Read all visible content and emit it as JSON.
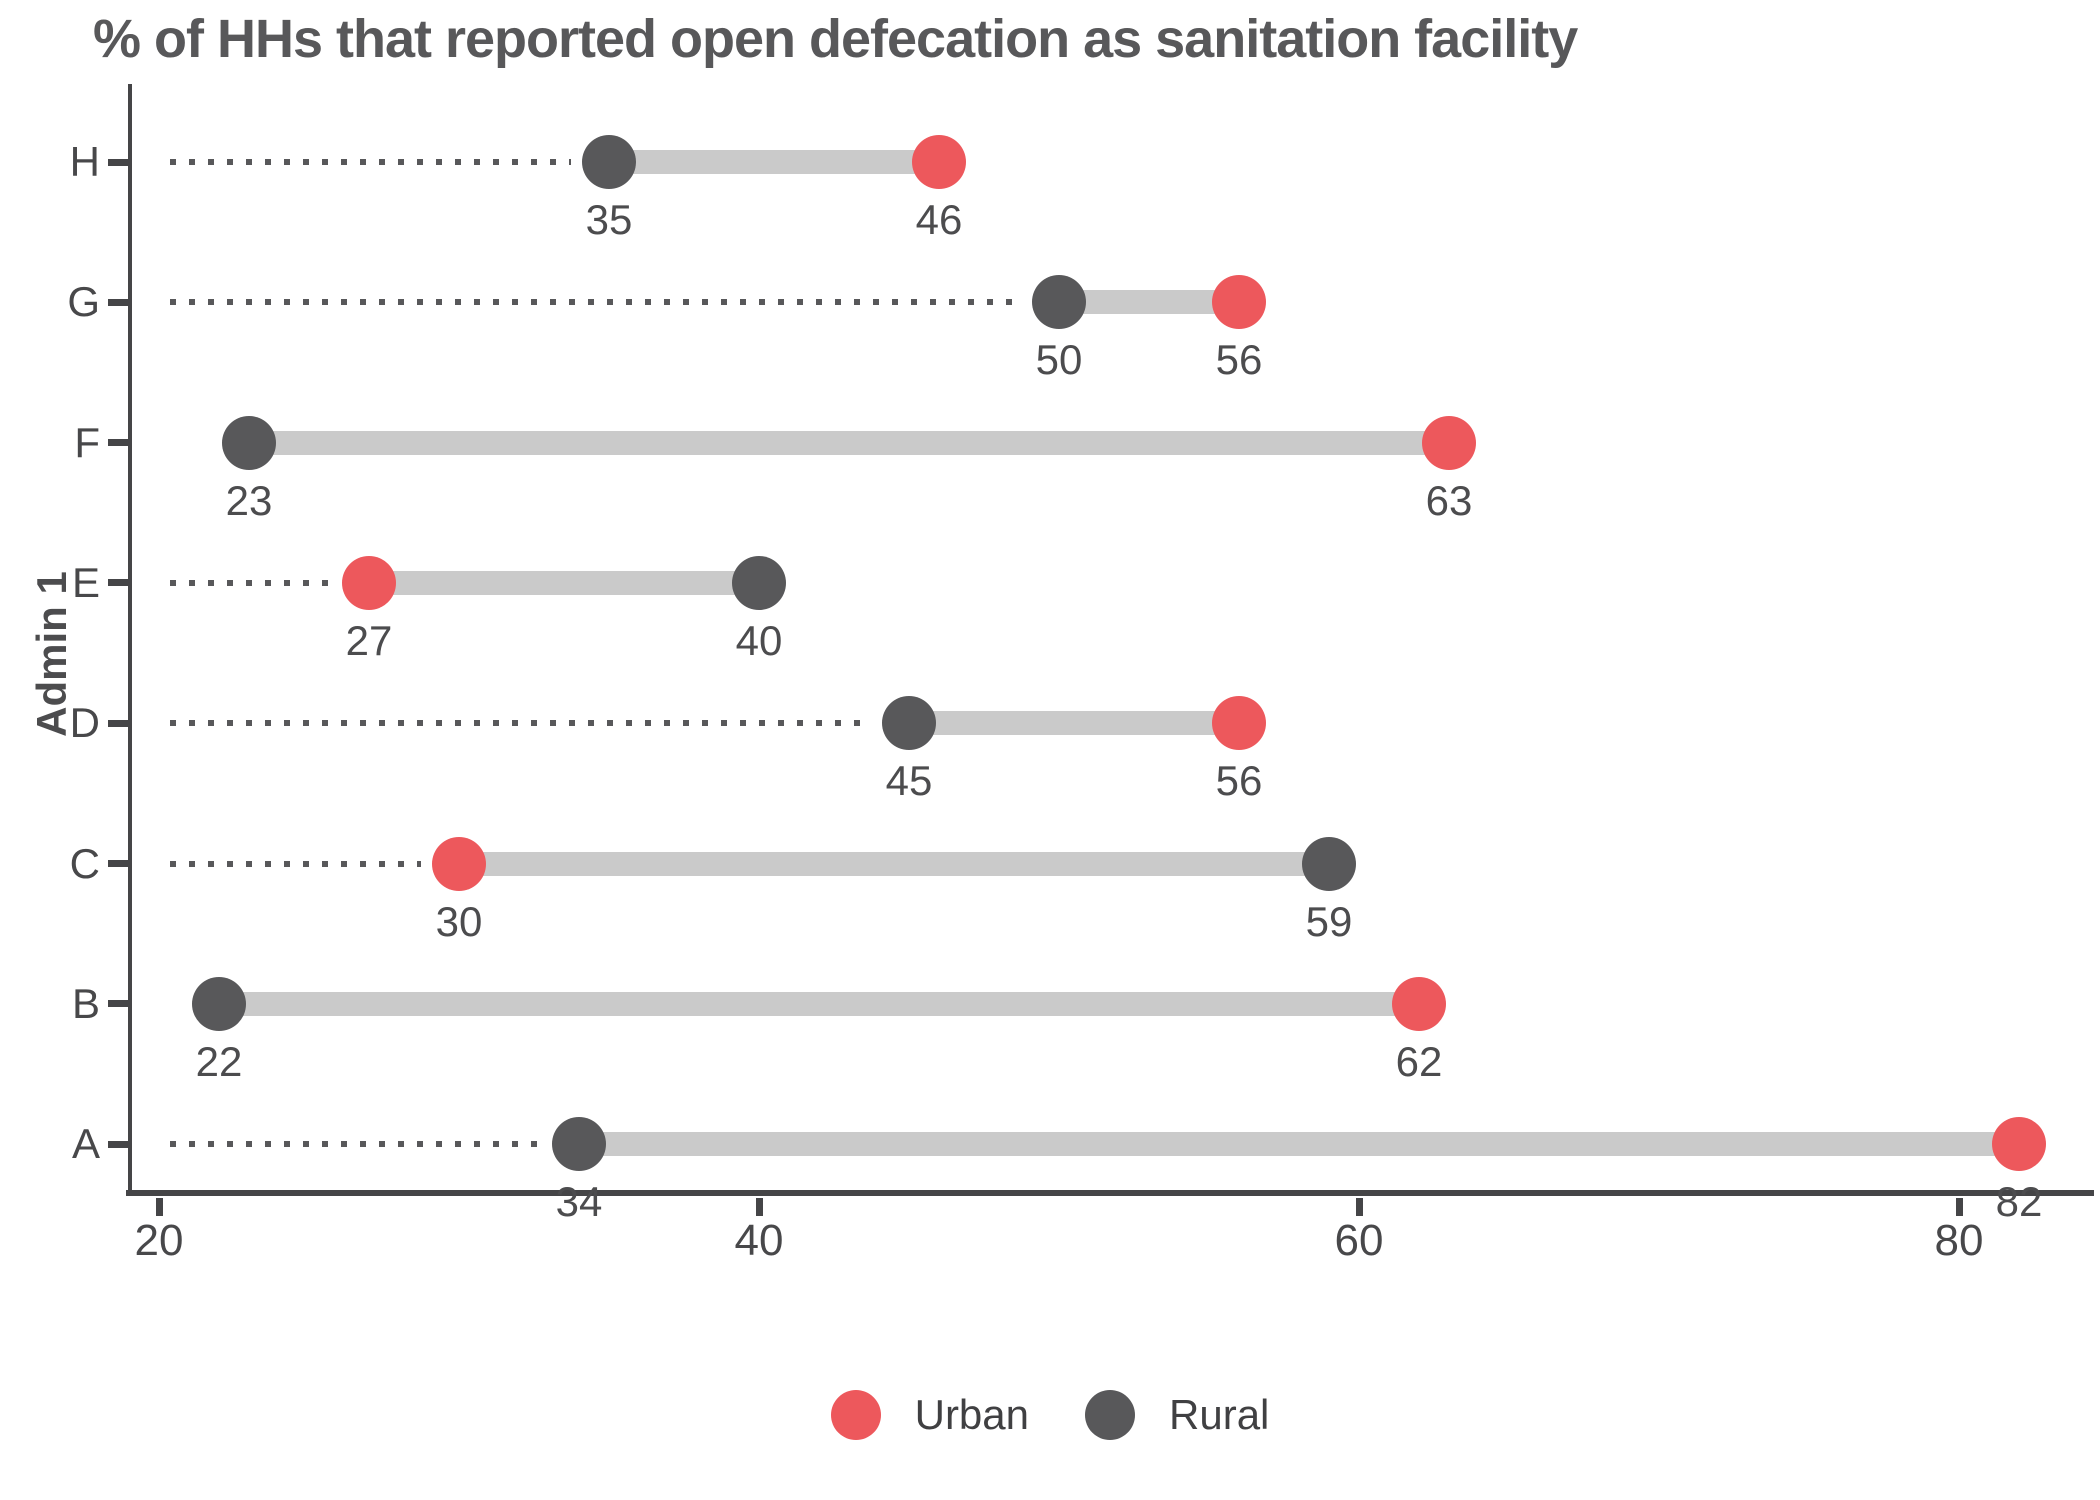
{
  "title": "% of HHs that reported open defecation as sanitation facility",
  "ylabel": "Admin 1",
  "colors": {
    "urban": "#ED585C",
    "rural": "#58585A",
    "connector": "#cacaca",
    "leader_dots": "#58585A",
    "axis": "#454547",
    "text": "#4c4c4e",
    "title": "#58585A"
  },
  "chart_data": {
    "type": "dumbbell",
    "orientation": "horizontal",
    "title": "% of HHs that reported open defecation as sanitation facility",
    "xlabel": "",
    "ylabel": "Admin 1",
    "categories": [
      "H",
      "G",
      "F",
      "E",
      "D",
      "C",
      "B",
      "A"
    ],
    "series": [
      {
        "name": "Urban",
        "color": "#ED585C",
        "values": [
          46,
          56,
          63,
          27,
          56,
          30,
          62,
          82
        ]
      },
      {
        "name": "Rural",
        "color": "#58585A",
        "values": [
          35,
          50,
          23,
          40,
          45,
          59,
          22,
          34
        ]
      }
    ],
    "point_labels_shown": true,
    "x_ticks": [
      20,
      40,
      60,
      80
    ],
    "xlim": [
      19,
      84.5
    ],
    "grid": "off",
    "leader_style": "dotted-from-axis-to-min-point",
    "legend_position": "bottom",
    "legend": [
      "Urban",
      "Rural"
    ]
  }
}
